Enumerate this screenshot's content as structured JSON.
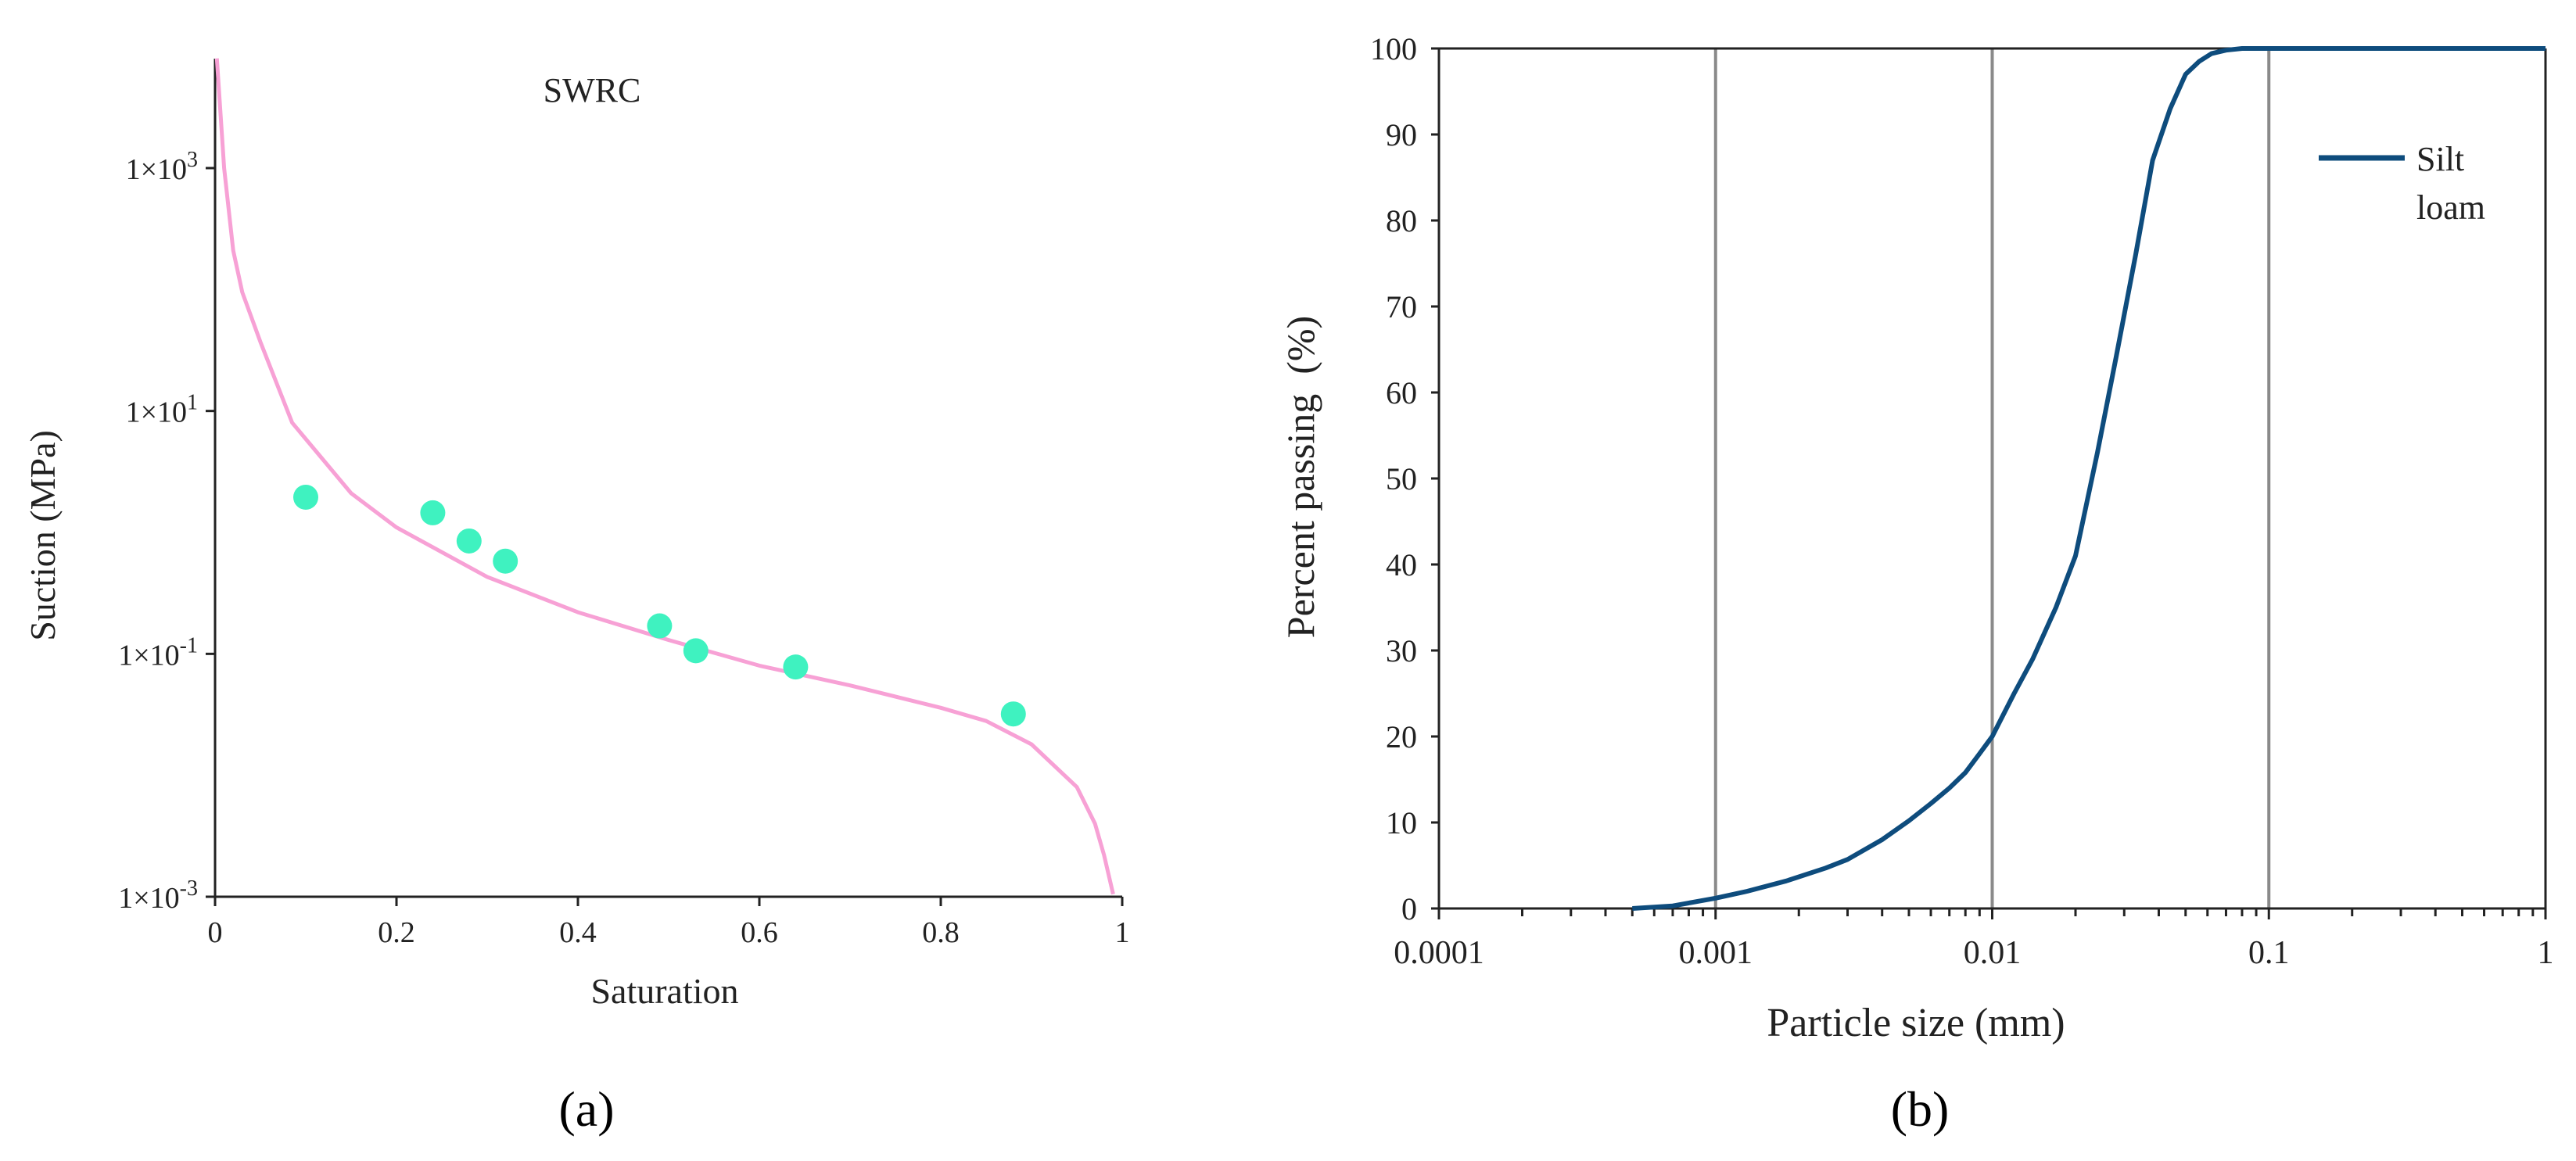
{
  "panels": {
    "a_label": "(a)",
    "b_label": "(b)"
  },
  "chart_data": [
    {
      "type": "scatter",
      "panel": "a",
      "title": "SWRC",
      "xlabel": "Saturation",
      "ylabel": "Suction (MPa)",
      "xlim": [
        0,
        1
      ],
      "ylim": [
        0.001,
        10000
      ],
      "y_scale": "log",
      "x_ticks": [
        "0",
        "0.2",
        "0.4",
        "0.6",
        "0.8",
        "1"
      ],
      "y_ticks": [
        {
          "base": "1×10",
          "exp": "-3",
          "value": 0.001
        },
        {
          "base": "1×10",
          "exp": "-1",
          "value": 0.1
        },
        {
          "base": "1×10",
          "exp": "1",
          "value": 10
        },
        {
          "base": "1×10",
          "exp": "3",
          "value": 1000
        }
      ],
      "grid": false,
      "series": [
        {
          "kind": "points",
          "color": "#3FF2C0",
          "x": [
            0.1,
            0.24,
            0.28,
            0.32,
            0.49,
            0.53,
            0.64,
            0.88
          ],
          "y": [
            1.95,
            1.45,
            0.85,
            0.58,
            0.17,
            0.106,
            0.078,
            0.032
          ]
        },
        {
          "kind": "line",
          "color": "#F7A1D5",
          "x": [
            0.002,
            0.01,
            0.02,
            0.03,
            0.05,
            0.085,
            0.15,
            0.2,
            0.3,
            0.4,
            0.5,
            0.6,
            0.7,
            0.8,
            0.85,
            0.9,
            0.95,
            0.97,
            0.98,
            0.99
          ],
          "y": [
            8000,
            1000,
            210,
            95,
            37,
            8,
            2.1,
            1.1,
            0.43,
            0.22,
            0.13,
            0.08,
            0.055,
            0.036,
            0.028,
            0.018,
            0.008,
            0.004,
            0.0022,
            0.00105
          ]
        }
      ]
    },
    {
      "type": "line",
      "panel": "b",
      "xlabel": "Particle size (mm)",
      "ylabel": "Percent passing  (%)",
      "x_scale": "log",
      "xlim": [
        0.0001,
        1
      ],
      "ylim": [
        0,
        100
      ],
      "x_ticks": [
        "0.0001",
        "0.001",
        "0.01",
        "0.1",
        "1"
      ],
      "y_ticks": [
        "0",
        "10",
        "20",
        "30",
        "40",
        "50",
        "60",
        "70",
        "80",
        "90",
        "100"
      ],
      "grid": "vertical lines at decades",
      "legend": {
        "position": "top-right",
        "lines": [
          "Silt",
          "loam"
        ]
      },
      "series": [
        {
          "name": "Silt loam",
          "color": "#0E4C7D",
          "x": [
            0.0005,
            0.0007,
            0.001,
            0.0013,
            0.0018,
            0.0025,
            0.003,
            0.004,
            0.005,
            0.006,
            0.007,
            0.008,
            0.009,
            0.01,
            0.012,
            0.014,
            0.017,
            0.02,
            0.024,
            0.028,
            0.033,
            0.038,
            0.044,
            0.05,
            0.056,
            0.062,
            0.07,
            0.08,
            0.1,
            0.2,
            0.5,
            1
          ],
          "y": [
            0,
            0.3,
            1.2,
            2.0,
            3.2,
            4.7,
            5.7,
            8.0,
            10.2,
            12.2,
            14.0,
            15.8,
            18.0,
            20.0,
            25.0,
            29.0,
            35.0,
            41.0,
            53.0,
            64.0,
            76.0,
            87.0,
            93.0,
            97.0,
            98.5,
            99.4,
            99.8,
            100,
            100,
            100,
            100,
            100
          ]
        }
      ]
    }
  ]
}
